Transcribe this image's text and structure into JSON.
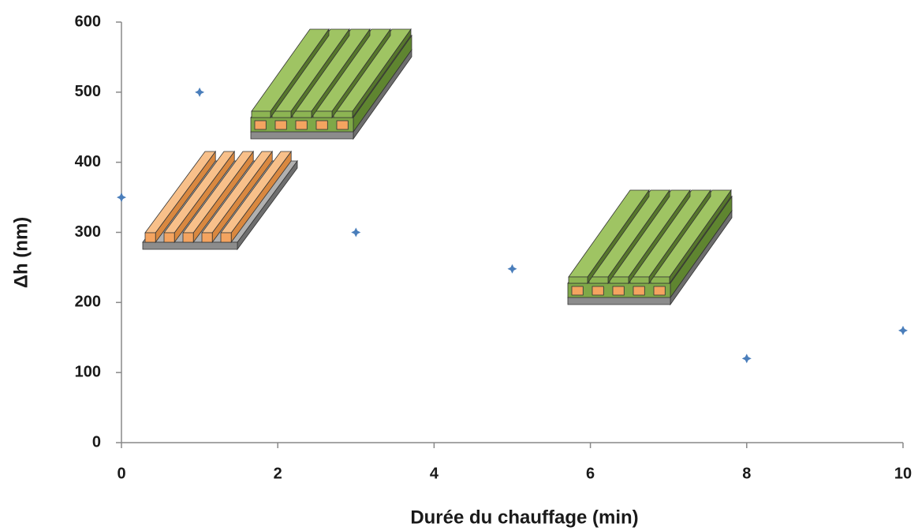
{
  "chart_data": {
    "type": "scatter",
    "xlabel": "Durée du chauffage (min)",
    "ylabel": "Δh (nm)",
    "x": [
      0,
      1,
      3,
      5,
      8,
      10
    ],
    "values": [
      350,
      500,
      300,
      248,
      120,
      160
    ],
    "color": "#4a7ebb",
    "xlim": [
      0,
      10
    ],
    "xticks": [
      0,
      2,
      4,
      6,
      8,
      10
    ],
    "ylim": [
      0,
      600
    ],
    "yticks": [
      0,
      100,
      200,
      300,
      400,
      500,
      600
    ],
    "grid": false
  }
}
